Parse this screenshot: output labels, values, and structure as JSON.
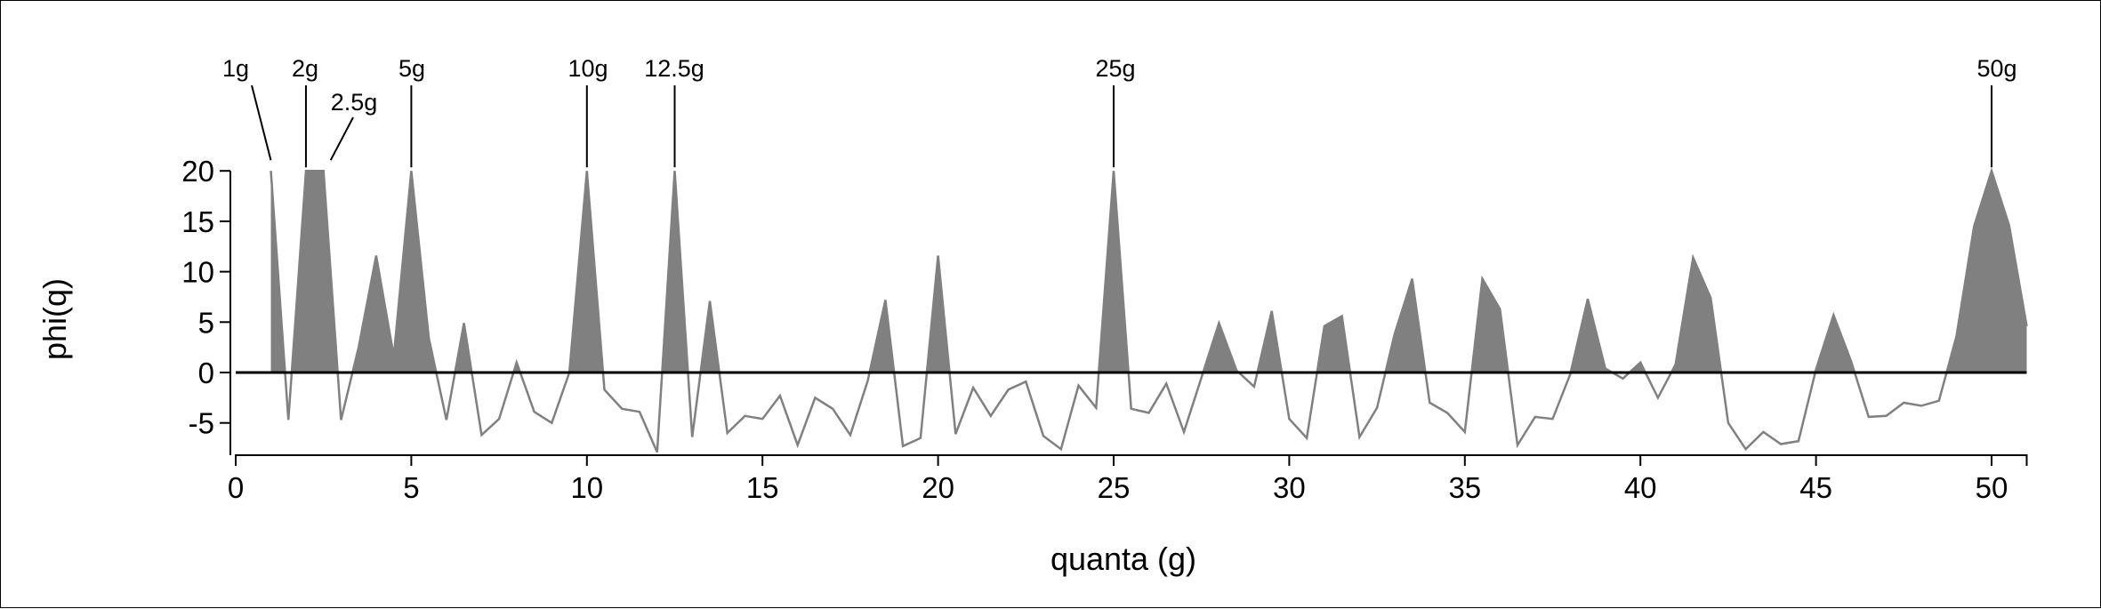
{
  "chart_data": {
    "type": "area",
    "title": "",
    "xlabel": "quanta (g)",
    "ylabel": "phi(q)",
    "xlim": [
      0,
      51
    ],
    "ylim": [
      -8,
      20
    ],
    "xticks": [
      0,
      5,
      10,
      15,
      20,
      25,
      30,
      35,
      40,
      45,
      50
    ],
    "yticks": [
      20,
      15,
      10,
      5,
      0,
      -5
    ],
    "tick_labels_x": [
      "0",
      "5",
      "10",
      "15",
      "20",
      "25",
      "30",
      "35",
      "40",
      "45",
      "50"
    ],
    "tick_labels_y": [
      "20",
      "15",
      "10",
      "5",
      "0",
      "-5"
    ],
    "grid": false,
    "fill_positive": true,
    "colors": {
      "line": "#808080",
      "fill": "#808080",
      "zero_line": "#000000",
      "axes": "#000000"
    },
    "x": [
      1.0,
      1.5,
      2.0,
      2.5,
      3.0,
      3.5,
      4.0,
      4.5,
      5.0,
      5.5,
      6.0,
      6.5,
      7.0,
      7.5,
      8.0,
      8.5,
      9.0,
      9.5,
      10.0,
      10.5,
      11.0,
      11.5,
      12.0,
      12.5,
      13.0,
      13.5,
      14.0,
      14.5,
      15.0,
      15.5,
      16.0,
      16.5,
      17.0,
      17.5,
      18.0,
      18.5,
      19.0,
      19.5,
      20.0,
      20.5,
      21.0,
      21.5,
      22.0,
      22.5,
      23.0,
      23.5,
      24.0,
      24.5,
      25.0,
      25.5,
      26.0,
      26.5,
      27.0,
      27.5,
      28.0,
      28.5,
      29.0,
      29.5,
      30.0,
      30.5,
      31.0,
      31.5,
      32.0,
      32.5,
      33.0,
      33.5,
      34.0,
      34.5,
      35.0,
      35.5,
      36.0,
      36.5,
      37.0,
      37.5,
      38.0,
      38.5,
      39.0,
      39.5,
      40.0,
      40.5,
      41.0,
      41.5,
      42.0,
      42.5,
      43.0,
      43.5,
      44.0,
      44.5,
      45.0,
      45.5,
      46.0,
      46.5,
      47.0,
      47.5,
      48.0,
      48.5,
      49.0,
      49.5,
      50.0,
      50.5,
      51.0
    ],
    "y": [
      20,
      -4.7,
      20,
      20,
      -4.7,
      2.5,
      11.6,
      1.6,
      20,
      3.4,
      -4.7,
      4.9,
      -6.2,
      -4.6,
      1.0,
      -3.9,
      -5.0,
      0.0,
      20,
      -1.7,
      -3.6,
      -3.9,
      -7.9,
      20,
      -6.4,
      7.1,
      -6.0,
      -4.3,
      -4.6,
      -2.3,
      -7.2,
      -2.5,
      -3.6,
      -6.2,
      -0.8,
      7.2,
      -7.3,
      -6.5,
      11.6,
      -6.1,
      -1.5,
      -4.3,
      -1.7,
      -0.9,
      -6.3,
      -7.6,
      -1.3,
      -3.5,
      20,
      -3.6,
      -4.0,
      -1.1,
      -5.9,
      -0.5,
      4.9,
      0.2,
      -1.4,
      6.1,
      -4.6,
      -6.5,
      4.6,
      5.6,
      -6.4,
      -3.5,
      3.8,
      9.3,
      -3.0,
      -4.0,
      -5.9,
      9.3,
      6.3,
      -7.2,
      -4.4,
      -4.6,
      -0.2,
      7.3,
      0.4,
      -0.6,
      1.0,
      -2.5,
      0.8,
      11.4,
      7.4,
      -5.0,
      -7.6,
      -5.9,
      -7.1,
      -6.8,
      0.3,
      5.7,
      1.1,
      -4.4,
      -4.3,
      -3.0,
      -3.3,
      -2.8,
      3.6,
      14.5,
      20,
      14.6,
      4.6
    ],
    "annotations": [
      {
        "label": "1g",
        "x": 1.0
      },
      {
        "label": "2g",
        "x": 2.0
      },
      {
        "label": "2.5g",
        "x": 2.5
      },
      {
        "label": "5g",
        "x": 5.0
      },
      {
        "label": "10g",
        "x": 10.0
      },
      {
        "label": "12.5g",
        "x": 12.5
      },
      {
        "label": "25g",
        "x": 25.0
      },
      {
        "label": "50g",
        "x": 50.0
      }
    ]
  }
}
